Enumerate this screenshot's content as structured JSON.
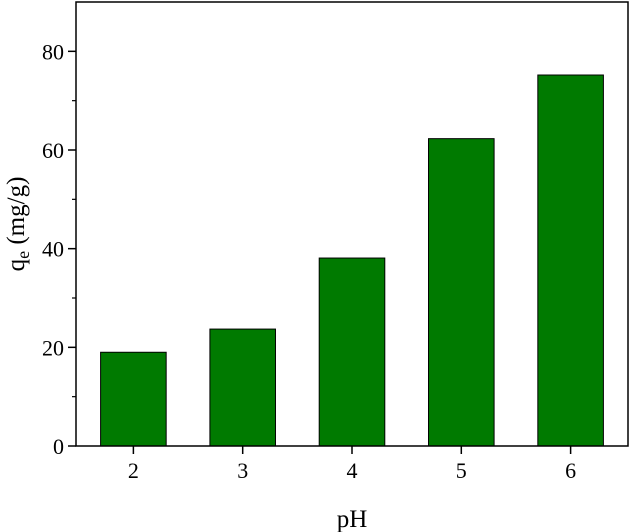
{
  "chart_data": {
    "type": "bar",
    "categories": [
      "2",
      "3",
      "4",
      "5",
      "6"
    ],
    "values": [
      19,
      23.7,
      38.1,
      62.3,
      75.2
    ],
    "xlabel": "pH",
    "ylabel": {
      "main": "q",
      "subscript": "e",
      "unit": " (mg/g)"
    },
    "ylim": [
      0,
      90
    ],
    "yticks": [
      0,
      20,
      40,
      60,
      80
    ],
    "bar_color": "#007a00",
    "bar_edge_color": "#000000",
    "grid": false,
    "legend": "none"
  }
}
